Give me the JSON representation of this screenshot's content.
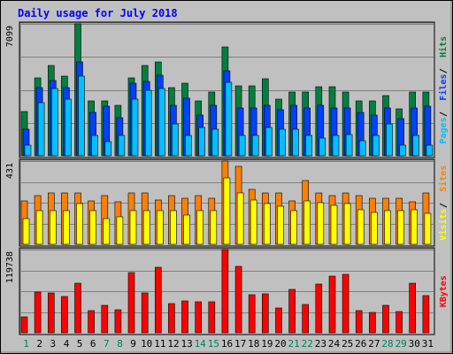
{
  "chart_data": {
    "type": "bar",
    "title": "Daily usage for July 2018",
    "days": [
      "1",
      "2",
      "3",
      "4",
      "5",
      "6",
      "7",
      "8",
      "9",
      "10",
      "11",
      "12",
      "13",
      "14",
      "15",
      "16",
      "17",
      "18",
      "19",
      "20",
      "21",
      "22",
      "23",
      "24",
      "25",
      "26",
      "27",
      "28",
      "29",
      "30",
      "31"
    ],
    "weekend_days": [
      1,
      7,
      8,
      14,
      15,
      21,
      22,
      28,
      29
    ],
    "panels": [
      {
        "id": "hits",
        "max_label": "7099",
        "ymax": 7099,
        "series": [
          {
            "name": "Hits",
            "color": "#008040",
            "values": [
              2394,
              4204,
              4840,
              4310,
              7099,
              2962,
              2962,
              2698,
              4202,
              4838,
              5051,
              3654,
              3903,
              2962,
              3437,
              5873,
              3762,
              3761,
              4165,
              3050,
              3432,
              3432,
              3697,
              3693,
              3431,
              2962,
              2962,
              3263,
              2532,
              3432,
              3452
            ]
          },
          {
            "name": "Files",
            "color": "#0040ff",
            "values": [
              1411,
              3691,
              4058,
              3691,
              5030,
              2323,
              2646,
              2058,
              3907,
              3979,
              4337,
              2698,
              3117,
              2210,
              2698,
              4580,
              2563,
              2563,
              2698,
              2463,
              2698,
              2563,
              2698,
              2563,
              2563,
              2323,
              2212,
              2563,
              1994,
              2563,
              2646
            ]
          },
          {
            "name": "Pages",
            "color": "#00c0ff",
            "values": [
              561,
              2844,
              3618,
              3069,
              4308,
              1117,
              743,
              1117,
              3044,
              3525,
              3618,
              1716,
              1117,
              1504,
              1430,
              3963,
              1117,
              1111,
              1501,
              1430,
              1431,
              1117,
              975,
              1111,
              1121,
              805,
              1111,
              1716,
              561,
              1117,
              584
            ]
          }
        ],
        "labels": [
          "Hits",
          "Files",
          "Pages"
        ]
      },
      {
        "id": "sites",
        "max_label": "431",
        "ymax": 431,
        "series": [
          {
            "name": "Sites",
            "color": "#ff8000",
            "values": [
              223,
              254,
              265,
              265,
              265,
              223,
              254,
              222,
              265,
              265,
              227,
              254,
              239,
              254,
              239,
              431,
              402,
              284,
              265,
              265,
              223,
              332,
              265,
              254,
              265,
              254,
              239,
              239,
              239,
              222,
              265
            ]
          },
          {
            "name": "Visits",
            "color": "#ffff00",
            "values": [
              134,
              173,
              173,
              173,
              211,
              173,
              134,
              144,
              173,
              172,
              173,
              173,
              150,
              173,
              173,
              345,
              265,
              228,
              210,
              197,
              173,
              224,
              216,
              202,
              210,
              180,
              167,
              173,
              173,
              180,
              161
            ]
          }
        ],
        "labels": [
          "Sites",
          "Visits"
        ]
      },
      {
        "id": "kbytes",
        "max_label": "119738",
        "ymax": 119738,
        "series": [
          {
            "name": "KBytes",
            "color": "#ff0000",
            "values": [
              23500,
              58200,
              57000,
              52800,
              71400,
              31500,
              39900,
              33600,
              86100,
              57600,
              94500,
              42000,
              45600,
              45000,
              45000,
              119738,
              95500,
              55400,
              55600,
              35300,
              62900,
              40600,
              70300,
              80900,
              84000,
              32100,
              29900,
              39900,
              30400,
              70800,
              53900
            ]
          }
        ],
        "labels": [
          "KBytes"
        ]
      }
    ],
    "grid": true
  }
}
